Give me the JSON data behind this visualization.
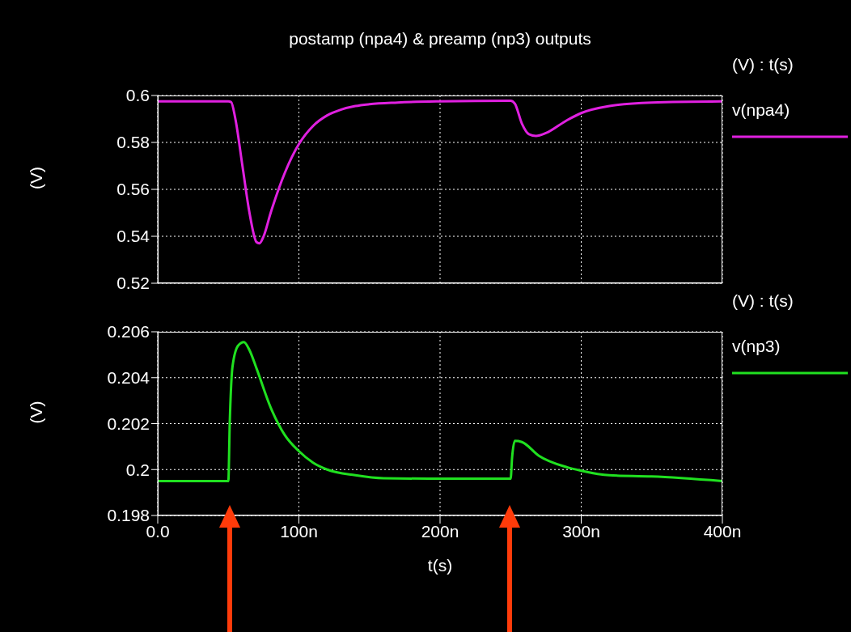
{
  "chart_data": [
    {
      "type": "line",
      "title": "postamp (npa4) & preamp (np3) outputs",
      "ylabel": "(V)",
      "legend_title": "(V) : t(s)",
      "legend": "right",
      "grid": true,
      "tick_labels": "y",
      "x": [
        0,
        50,
        52,
        55,
        60,
        65,
        70,
        72,
        75,
        80,
        90,
        100,
        110,
        120,
        130,
        140,
        150,
        170,
        200,
        250,
        253,
        258,
        263,
        268,
        275,
        290,
        300,
        320,
        350,
        400
      ],
      "series": [
        {
          "name": "v(npa4)",
          "color": "#e020e0",
          "values": [
            0.5975,
            0.5975,
            0.5972,
            0.59,
            0.57,
            0.55,
            0.5375,
            0.537,
            0.54,
            0.55,
            0.567,
            0.5793,
            0.587,
            0.5915,
            0.594,
            0.5955,
            0.5963,
            0.597,
            0.5975,
            0.5978,
            0.5965,
            0.588,
            0.5835,
            0.5828,
            0.584,
            0.5895,
            0.5925,
            0.5955,
            0.597,
            0.5975
          ]
        }
      ],
      "xlim": [
        0,
        400
      ],
      "xticks": [
        0,
        100,
        200,
        300,
        400
      ],
      "ylim": [
        0.52,
        0.6
      ],
      "yticks": [
        0.52,
        0.54,
        0.56,
        0.58,
        0.6
      ]
    },
    {
      "type": "line",
      "xlabel": "t(s)",
      "ylabel": "(V)",
      "legend_title": "(V) : t(s)",
      "legend": "right",
      "grid": true,
      "x": [
        0,
        50,
        51,
        53,
        57,
        61,
        65,
        70,
        80,
        90,
        100,
        110,
        120,
        140,
        160,
        200,
        250,
        251,
        253,
        258,
        270,
        290,
        300,
        320,
        350,
        400
      ],
      "series": [
        {
          "name": "v(np3)",
          "color": "#20e020",
          "values": [
            0.1995,
            0.1995,
            0.202,
            0.2045,
            0.2054,
            0.20555,
            0.2052,
            0.2044,
            0.2027,
            0.2015,
            0.2008,
            0.2003,
            0.2,
            0.19975,
            0.19962,
            0.1996,
            0.1996,
            0.2005,
            0.20125,
            0.2012,
            0.2006,
            0.2001,
            0.19995,
            0.19975,
            0.1997,
            0.1995
          ]
        }
      ],
      "xlim": [
        0,
        400
      ],
      "xticks": [
        {
          "value": 0,
          "label": "0.0"
        },
        {
          "value": 100,
          "label": "100n"
        },
        {
          "value": 200,
          "label": "200n"
        },
        {
          "value": 300,
          "label": "300n"
        },
        {
          "value": 400,
          "label": "400n"
        }
      ],
      "ylim": [
        0.198,
        0.206
      ],
      "yticks": [
        0.198,
        0.2,
        0.202,
        0.204,
        0.206
      ]
    }
  ]
}
